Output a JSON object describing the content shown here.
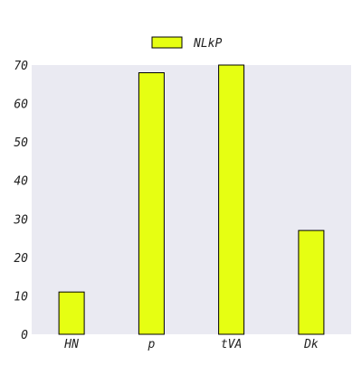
{
  "chart_data": {
    "type": "bar",
    "categories": [
      "HN",
      "p",
      "tVA",
      "Dk"
    ],
    "series": [
      {
        "name": "NLkP",
        "values": [
          11,
          68,
          70,
          27
        ]
      }
    ],
    "ylim": [
      0,
      70
    ],
    "yticks": [
      0,
      10,
      20,
      30,
      40,
      50,
      60,
      70
    ],
    "grid": false,
    "legend": "top-center",
    "colors": {
      "bar_fill": "#e6ff12",
      "bar_stroke": "#000000",
      "plot_background": "#eaeaf2",
      "text": "#222222"
    }
  }
}
